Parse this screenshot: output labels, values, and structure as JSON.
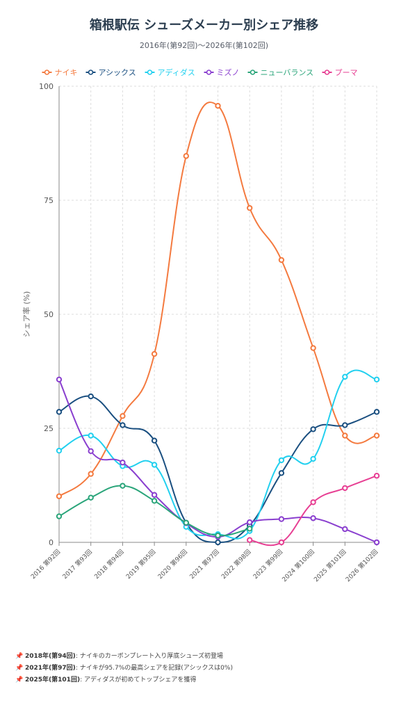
{
  "chart_data": {
    "type": "line",
    "title": "箱根駅伝 シューズメーカー別シェア推移",
    "subtitle": "2016年(第92回)〜2026年(第102回)",
    "ylabel": "シェア率 (%)",
    "xlabel": "",
    "ylim": [
      0,
      100
    ],
    "yticks": [
      "0",
      "25",
      "50",
      "75",
      "100"
    ],
    "grid": true,
    "legend_position": "top",
    "categories": [
      "2016 第92回",
      "2017 第93回",
      "2018 第94回",
      "2019 第95回",
      "2020 第96回",
      "2021 第97回",
      "2022 第98回",
      "2023 第99回",
      "2024 第100回",
      "2025 第101回",
      "2026 第102回"
    ],
    "series": [
      {
        "name": "ナイキ",
        "color": "#f47a3f",
        "values": [
          10.1,
          15.0,
          27.7,
          41.3,
          84.7,
          95.7,
          73.3,
          61.9,
          42.6,
          23.4,
          23.4
        ]
      },
      {
        "name": "アシックス",
        "color": "#1a4f80",
        "values": [
          28.6,
          32.0,
          25.7,
          22.3,
          4.3,
          0.0,
          3.7,
          15.2,
          24.8,
          25.7,
          28.6
        ]
      },
      {
        "name": "アディダス",
        "color": "#22d0ef",
        "values": [
          20.1,
          23.4,
          16.7,
          17.0,
          3.4,
          1.8,
          2.5,
          18.0,
          18.3,
          36.3,
          35.7
        ]
      },
      {
        "name": "ミズノ",
        "color": "#8a3fcf",
        "values": [
          35.7,
          20.0,
          17.5,
          10.4,
          4.2,
          1.2,
          4.4,
          5.1,
          5.3,
          2.9,
          0.0
        ]
      },
      {
        "name": "ニューバランス",
        "color": "#2aa57a",
        "values": [
          5.7,
          9.8,
          12.4,
          9.1,
          4.3,
          1.5,
          3.0,
          null,
          null,
          null,
          null
        ]
      },
      {
        "name": "プーマ",
        "color": "#e73f93",
        "values": [
          null,
          null,
          null,
          null,
          null,
          null,
          0.5,
          0.0,
          8.8,
          11.9,
          14.6
        ]
      }
    ]
  },
  "notes": [
    {
      "icon": "pin-icon",
      "year": "2018年(第94回)",
      "text": ": ナイキのカーボンプレート入り厚底シューズ初登場"
    },
    {
      "icon": "pin-icon",
      "year": "2021年(第97回)",
      "text": ": ナイキが95.7%の最高シェアを記録(アシックスは0%)"
    },
    {
      "icon": "pin-icon",
      "year": "2025年(第101回)",
      "text": ": アディダスが初めてトップシェアを獲得"
    }
  ]
}
